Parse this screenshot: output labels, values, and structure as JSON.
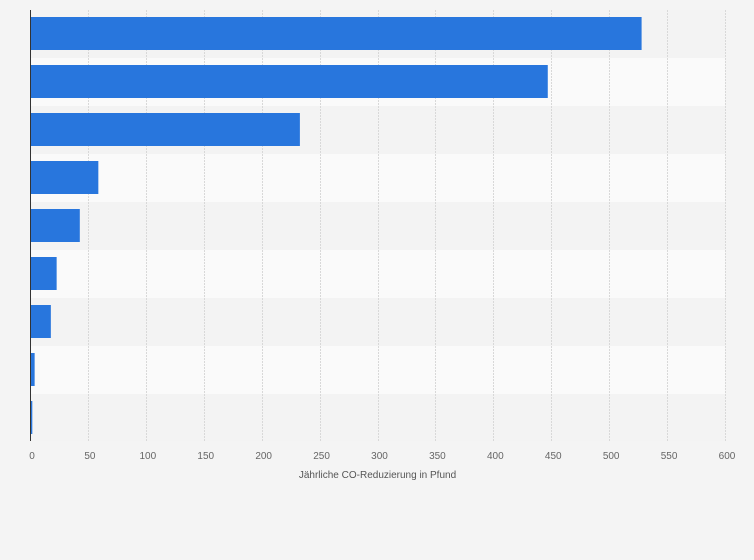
{
  "chart_data": {
    "type": "bar",
    "orientation": "horizontal",
    "categories": [
      "",
      "",
      "",
      "",
      "",
      "",
      "",
      "",
      ""
    ],
    "values": [
      528,
      447,
      233,
      59,
      43,
      23,
      18,
      4,
      2
    ],
    "xlabel": "Jährliche CO-Reduzierung in Pfund",
    "ylabel": "",
    "xlim": [
      0,
      600
    ],
    "xticks": [
      0,
      50,
      100,
      150,
      200,
      250,
      300,
      350,
      400,
      450,
      500,
      550,
      600
    ],
    "grid": true,
    "legend": "none"
  },
  "colors": {
    "bar": "#2876dd",
    "background": "#f4f4f4",
    "band_light": "#fafafa",
    "band_dark": "#f3f3f3",
    "grid": "#d8d8d8",
    "axis": "#333333"
  }
}
